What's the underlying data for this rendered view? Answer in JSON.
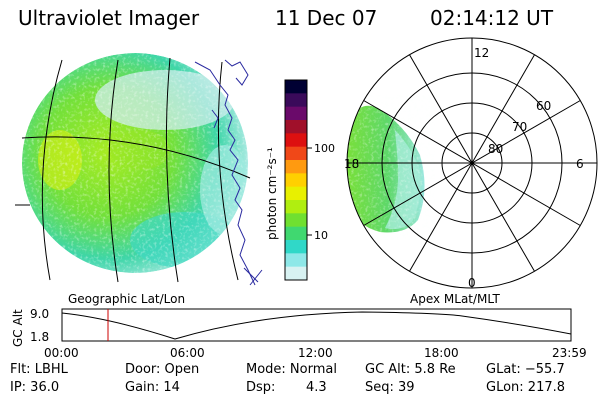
{
  "header": {
    "instrument": "Ultraviolet Imager",
    "date": "11 Dec 07",
    "time": "02:14:12 UT"
  },
  "geo_panel": {
    "label": "Geographic Lat/Lon"
  },
  "colorbar": {
    "unit_label": "photon cm⁻²s⁻¹",
    "ticks": [
      "100",
      "10"
    ],
    "scale": "log",
    "colors": [
      "#000033",
      "#3a0a5a",
      "#6a0a6a",
      "#a0102a",
      "#dd1010",
      "#f04818",
      "#ff9a10",
      "#ffd000",
      "#e8f000",
      "#b0ee10",
      "#70e030",
      "#40d870",
      "#30d8c8",
      "#8ee8e8",
      "#d8f2f2"
    ]
  },
  "polar_panel": {
    "label": "Apex MLat/MLT",
    "mlt_labels": [
      "12",
      "18",
      "6",
      "0"
    ],
    "mlat_labels": [
      "60",
      "70",
      "80"
    ]
  },
  "altitude_plot": {
    "ylabel": "GC Alt",
    "yticks": [
      "9.0",
      "1.8"
    ],
    "xticks": [
      "00:00",
      "06:00",
      "12:00",
      "18:00",
      "23:59"
    ],
    "current_time_marker_color": "#cc0000"
  },
  "info": {
    "filter": "Flt: LBHL",
    "ip": "IP: 36.0",
    "door": "Door: Open",
    "gain": "Gain: 14",
    "mode": "Mode: Normal",
    "dsp_label": "Dsp:",
    "dsp_value": "4.3",
    "gc_alt": "GC Alt: 5.8 Re",
    "seq": "Seq: 39",
    "glat": "GLat: −55.7",
    "glon": "GLon: 217.8"
  }
}
